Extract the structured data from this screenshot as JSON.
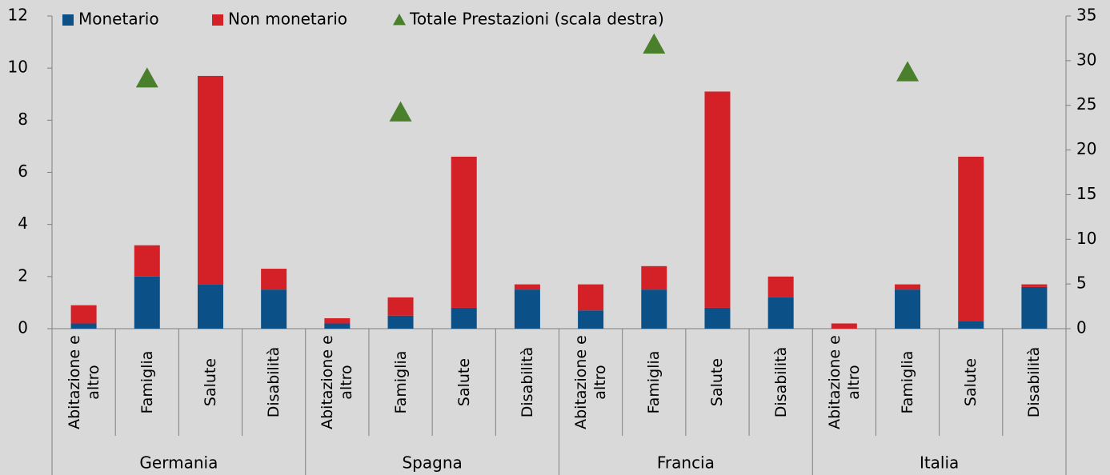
{
  "chart_data": {
    "type": "bar",
    "stacked": true,
    "categories": [
      "Abitazione e altro",
      "Famiglia",
      "Salute",
      "Disabilità",
      "Abitazione e altro",
      "Famiglia",
      "Salute",
      "Disabilità",
      "Abitazione e altro",
      "Famiglia",
      "Salute",
      "Disabilità",
      "Abitazione e altro",
      "Famiglia",
      "Salute",
      "Disabilità"
    ],
    "groups": [
      "Germania",
      "Spagna",
      "Francia",
      "Italia"
    ],
    "series": [
      {
        "name": "Monetario",
        "color": "#0b5188",
        "values": [
          0.2,
          2.0,
          1.7,
          1.5,
          0.2,
          0.5,
          0.8,
          1.5,
          0.7,
          1.5,
          0.8,
          1.2,
          0,
          1.5,
          0.3,
          1.6
        ]
      },
      {
        "name": "Non monetario",
        "color": "#d42027",
        "values": [
          0.7,
          1.2,
          8.0,
          0.8,
          0.2,
          0.7,
          5.8,
          0.2,
          1.0,
          0.9,
          8.3,
          0.8,
          0.2,
          0.2,
          6.3,
          0.1
        ]
      },
      {
        "name": "Totale Prestazioni (scala destra)",
        "color": "#4a7f2c",
        "type": "scatter",
        "marker": "triangle",
        "axis": "y2",
        "values": [
          null,
          28,
          null,
          null,
          null,
          24.2,
          null,
          null,
          null,
          31.8,
          null,
          null,
          null,
          28.7,
          null,
          null
        ]
      }
    ],
    "ylim": [
      0,
      12
    ],
    "yticks": [
      0,
      2,
      4,
      6,
      8,
      10,
      12
    ],
    "y2lim": [
      0,
      35
    ],
    "y2ticks": [
      0,
      5,
      10,
      15,
      20,
      25,
      30,
      35
    ],
    "grid": false,
    "legend": "top"
  }
}
